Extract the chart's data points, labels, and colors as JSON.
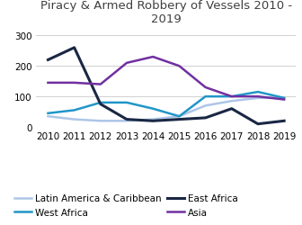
{
  "title": "Piracy & Armed Robbery of Vessels 2010 -\n2019",
  "years": [
    2010,
    2011,
    2012,
    2013,
    2014,
    2015,
    2016,
    2017,
    2018,
    2019
  ],
  "series_order": [
    "Latin America & Caribbean",
    "West Africa",
    "East Africa",
    "Asia"
  ],
  "series": {
    "Latin America & Caribbean": {
      "values": [
        35,
        25,
        20,
        20,
        25,
        35,
        70,
        85,
        95,
        95
      ],
      "color": "#aec6e8",
      "linewidth": 1.8
    },
    "West Africa": {
      "values": [
        45,
        55,
        80,
        80,
        60,
        35,
        100,
        100,
        115,
        95
      ],
      "color": "#2196c8",
      "linewidth": 1.8
    },
    "East Africa": {
      "values": [
        220,
        260,
        75,
        25,
        20,
        25,
        30,
        60,
        10,
        20
      ],
      "color": "#1a2744",
      "linewidth": 2.2
    },
    "Asia": {
      "values": [
        145,
        145,
        140,
        210,
        230,
        200,
        130,
        100,
        100,
        90
      ],
      "color": "#7030a0",
      "linewidth": 1.8
    }
  },
  "ylim": [
    0,
    330
  ],
  "yticks": [
    0,
    100,
    200,
    300
  ],
  "background_color": "#ffffff",
  "title_fontsize": 9.5,
  "legend_fontsize": 7.5,
  "tick_fontsize": 7.5,
  "title_color": "#404040",
  "grid_color": "#d0d0d0",
  "legend_cols": 2,
  "legend_order": [
    "Latin America & Caribbean",
    "West Africa",
    "East Africa",
    "Asia"
  ]
}
